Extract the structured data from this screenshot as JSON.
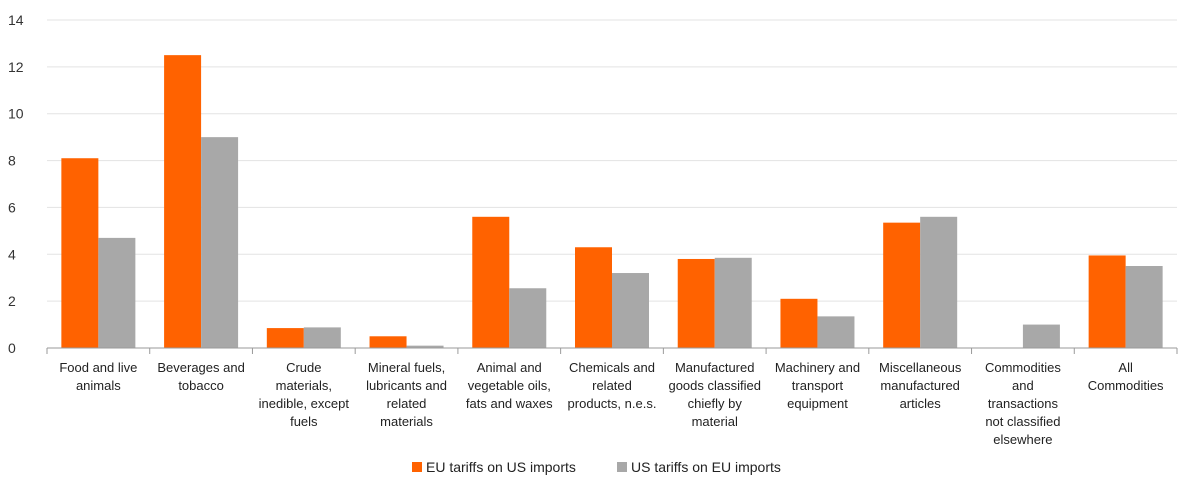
{
  "chart_data": {
    "type": "bar",
    "title": "",
    "xlabel": "",
    "ylabel": "",
    "ylim": [
      0,
      14
    ],
    "yticks": [
      0,
      2,
      4,
      6,
      8,
      10,
      12,
      14
    ],
    "grid": true,
    "legend_position": "bottom-center",
    "categories": [
      [
        "Food and live",
        "animals"
      ],
      [
        "Beverages and",
        "tobacco"
      ],
      [
        "Crude",
        "materials,",
        "inedible, except",
        "fuels"
      ],
      [
        "Mineral fuels,",
        "lubricants and",
        "related",
        "materials"
      ],
      [
        "Animal and",
        "vegetable oils,",
        "fats and waxes"
      ],
      [
        "Chemicals and",
        "related",
        "products, n.e.s."
      ],
      [
        "Manufactured",
        "goods classified",
        "chiefly by",
        "material"
      ],
      [
        "Machinery and",
        "transport",
        "equipment"
      ],
      [
        "Miscellaneous",
        "manufactured",
        "articles"
      ],
      [
        "Commodities",
        "and",
        "transactions",
        "not classified",
        "elsewhere"
      ],
      [
        "All",
        "Commodities"
      ]
    ],
    "series": [
      {
        "name": "EU tariffs on US imports",
        "color": "#ff6200",
        "values": [
          8.1,
          12.5,
          0.85,
          0.5,
          5.6,
          4.3,
          3.8,
          2.1,
          5.35,
          0,
          3.95
        ]
      },
      {
        "name": "US tariffs on EU imports",
        "color": "#a8a8a8",
        "values": [
          4.7,
          9.0,
          0.88,
          0.1,
          2.55,
          3.2,
          3.85,
          1.35,
          5.6,
          1.0,
          3.5
        ]
      }
    ]
  }
}
